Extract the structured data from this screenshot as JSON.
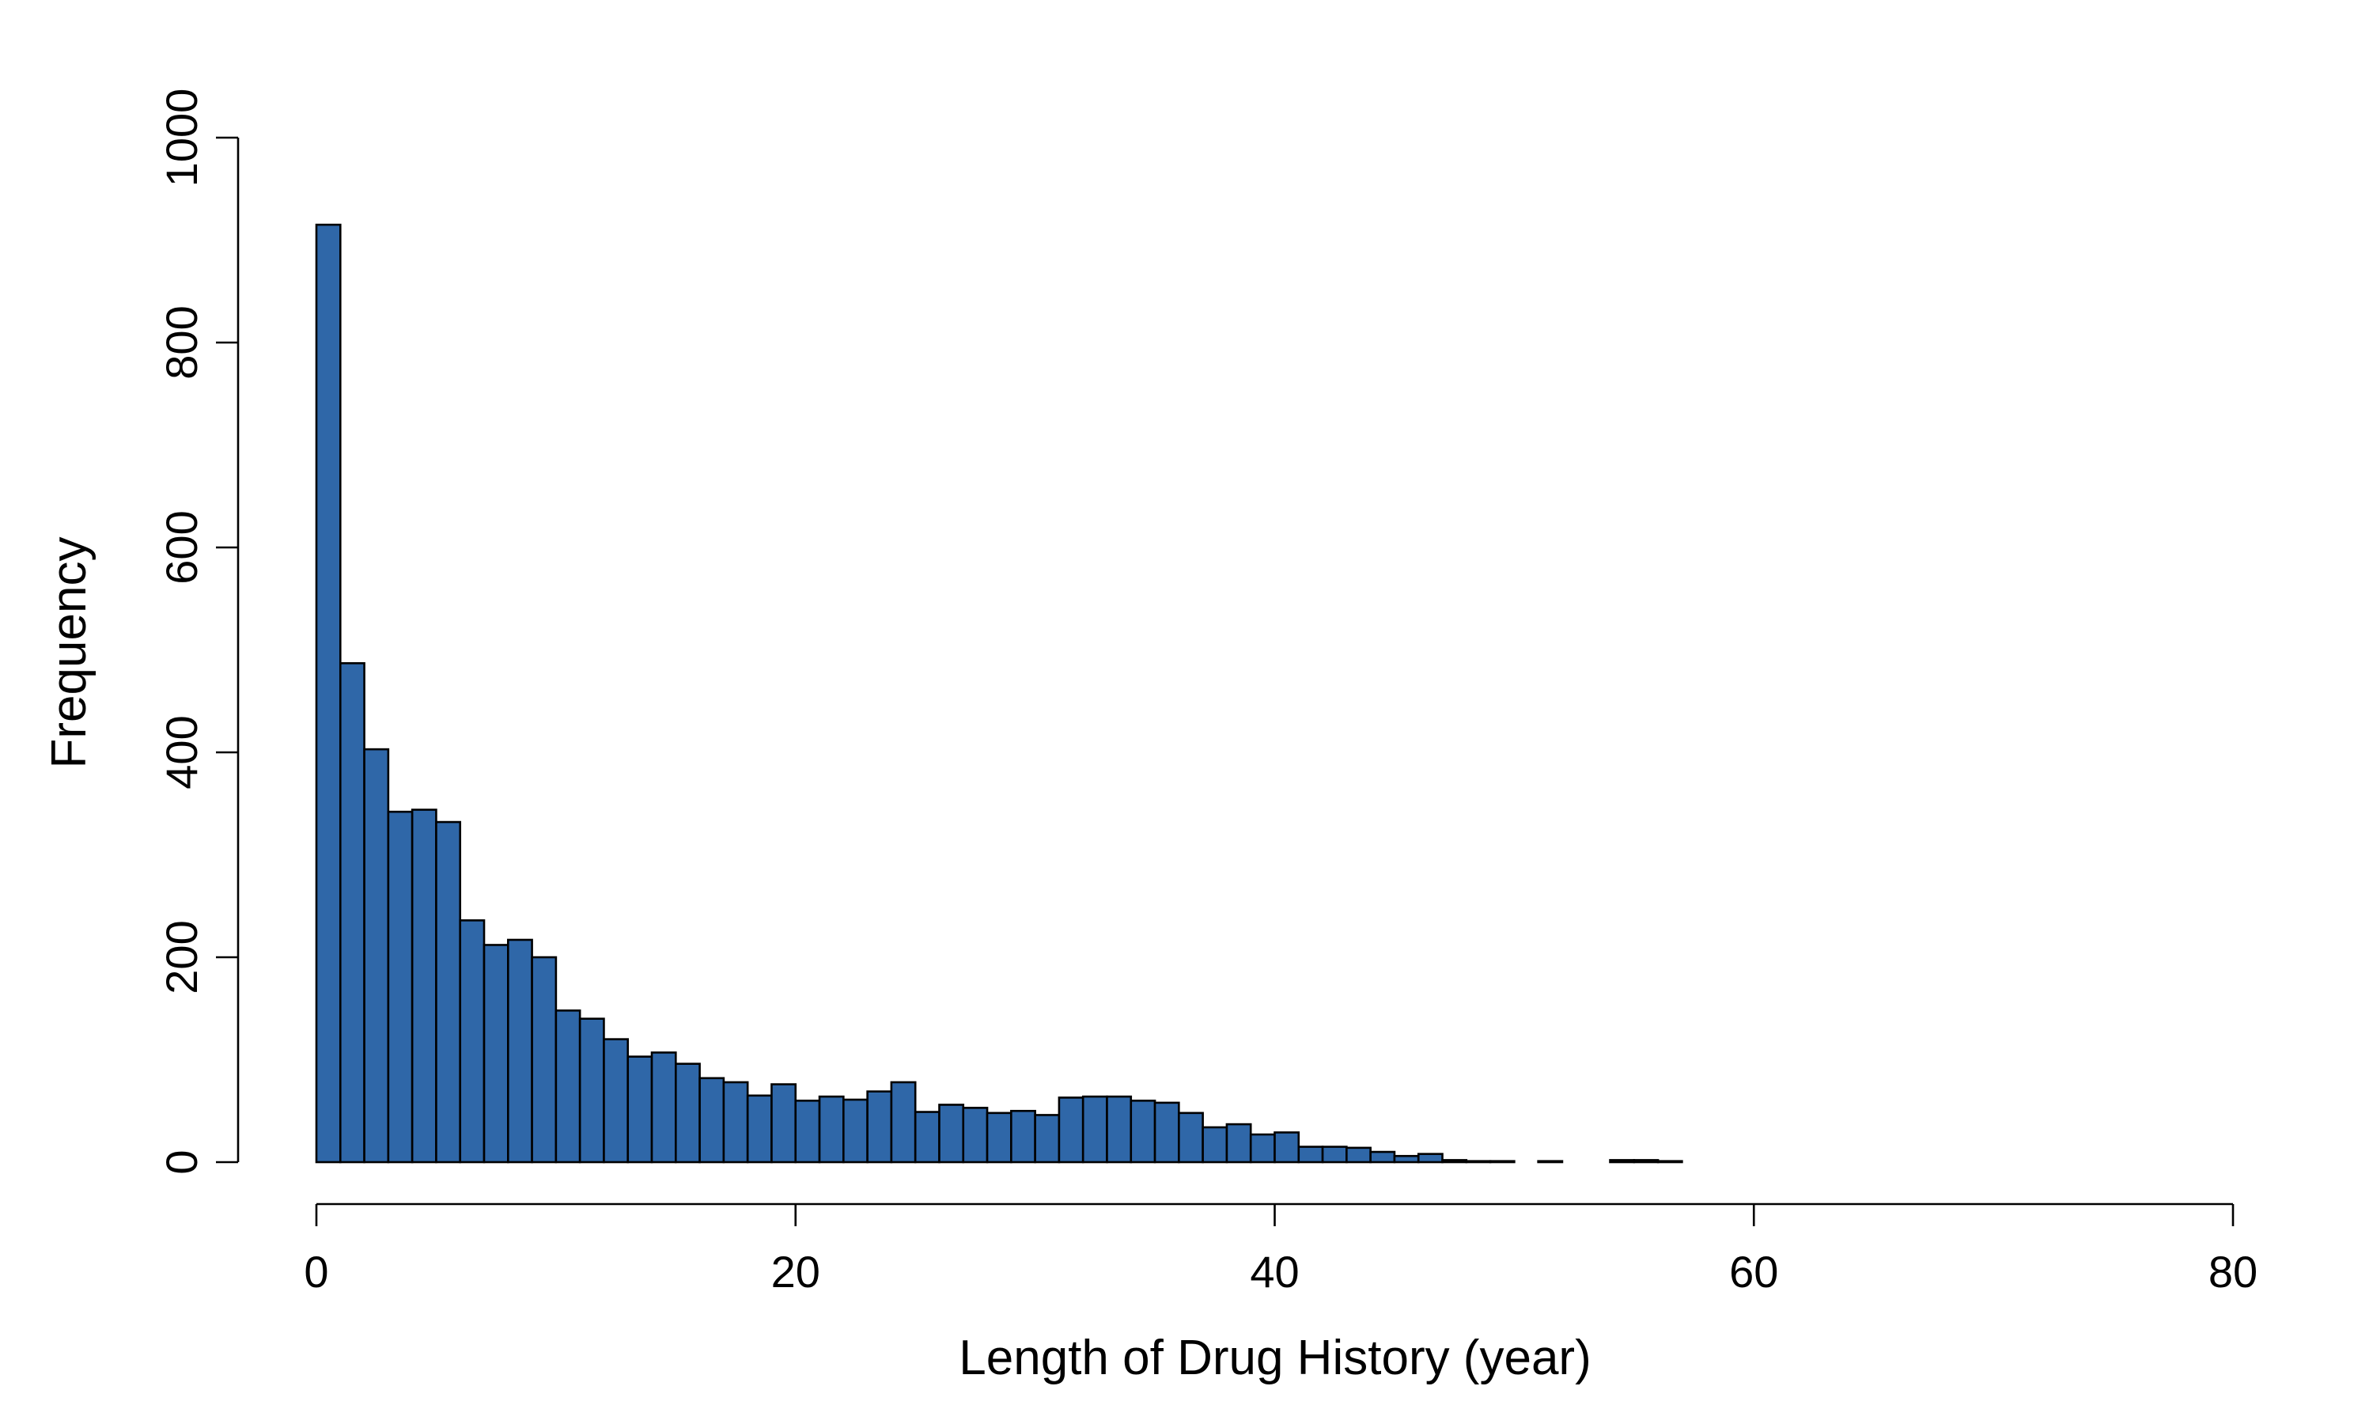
{
  "chart_data": {
    "type": "bar",
    "title": "",
    "xlabel": "Length of Drug History (year)",
    "ylabel": "Frequency",
    "xlim": [
      0,
      80
    ],
    "ylim": [
      0,
      1000
    ],
    "x_ticks": [
      "0",
      "20",
      "40",
      "60",
      "80"
    ],
    "y_ticks": [
      "0",
      "200",
      "400",
      "600",
      "800",
      "1000"
    ],
    "bin_width": 1,
    "bin_start": 0,
    "values": [
      915,
      487,
      403,
      342,
      344,
      332,
      236,
      212,
      217,
      200,
      148,
      140,
      120,
      103,
      107,
      96,
      82,
      78,
      65,
      76,
      60,
      64,
      61,
      69,
      78,
      49,
      56,
      53,
      48,
      50,
      46,
      63,
      64,
      64,
      60,
      58,
      48,
      34,
      37,
      27,
      29,
      15,
      15,
      14,
      10,
      6,
      8,
      2,
      1,
      1,
      0,
      1,
      0,
      0,
      2,
      2,
      1
    ],
    "bar_color": "#2f67a8",
    "grid": false,
    "legend": "none"
  }
}
